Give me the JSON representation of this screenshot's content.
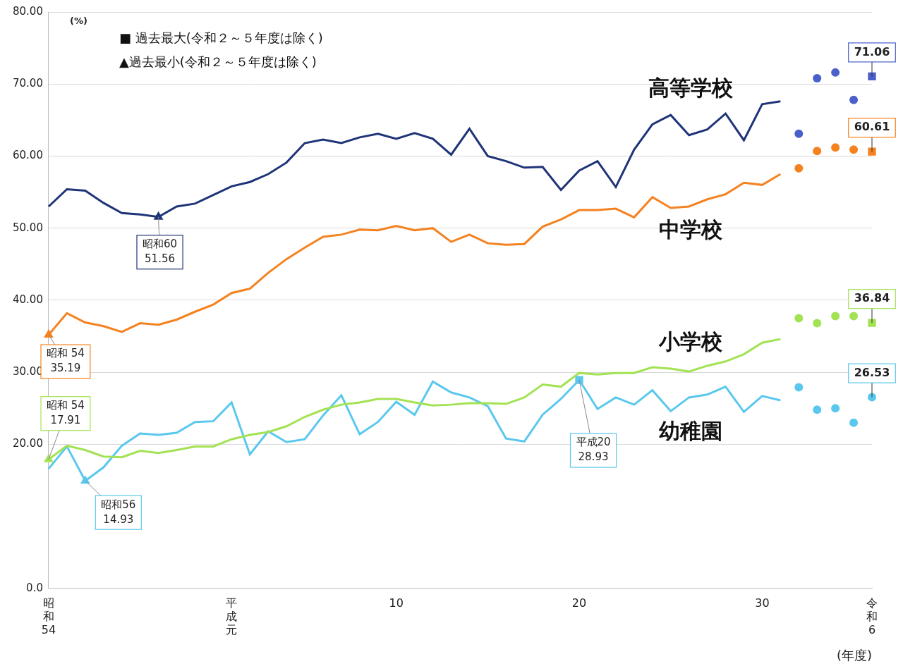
{
  "chart_data": {
    "type": "line",
    "x_label": "(年度)",
    "y_label": "(%)",
    "annotations": [
      "■ 過去最大(令和２～５年度は除く)",
      "▲過去最小(令和２～５年度は除く)"
    ],
    "categories": [
      "昭和54",
      null,
      null,
      null,
      null,
      null,
      null,
      null,
      null,
      null,
      "平成元",
      null,
      null,
      null,
      null,
      null,
      null,
      null,
      null,
      "10",
      null,
      null,
      null,
      null,
      null,
      null,
      null,
      null,
      null,
      "20",
      null,
      null,
      null,
      null,
      null,
      null,
      null,
      null,
      null,
      "30",
      null,
      null,
      null,
      null,
      null,
      "令和6"
    ],
    "ylim": [
      0,
      80
    ],
    "yticks": [
      {
        "value": 0,
        "label": "0.0"
      },
      {
        "value": 20,
        "label": "20.00"
      },
      {
        "value": 30,
        "label": "30.00"
      },
      {
        "value": 40,
        "label": "40.00"
      },
      {
        "value": 50,
        "label": "50.00"
      },
      {
        "value": 60,
        "label": "60.00"
      },
      {
        "value": 70,
        "label": "70.00"
      },
      {
        "value": 80,
        "label": "80.00"
      }
    ],
    "grid": true,
    "series": [
      {
        "name": "高等学校",
        "type": "line",
        "color": "#1f3478",
        "values": [
          53.0,
          55.4,
          55.2,
          53.5,
          52.1,
          51.9,
          51.56,
          53.0,
          53.4,
          54.6,
          55.8,
          56.4,
          57.5,
          59.1,
          61.8,
          62.3,
          61.8,
          62.6,
          63.1,
          62.4,
          63.2,
          62.4,
          60.2,
          63.8,
          60.0,
          59.3,
          58.4,
          58.5,
          55.3,
          58.0,
          59.3,
          55.7,
          60.9,
          64.4,
          65.7,
          62.9,
          63.7,
          65.9,
          62.2,
          67.2,
          67.6,
          null,
          null,
          null,
          null,
          null
        ],
        "callouts": [
          {
            "category": "昭和60",
            "value": 51.56,
            "label": "51.56",
            "marker": "triangle"
          }
        ]
      },
      {
        "name": "高等学校",
        "type": "scatter",
        "marker": "circle",
        "color": "#4a5fc9",
        "values": [
          null,
          null,
          null,
          null,
          null,
          null,
          null,
          null,
          null,
          null,
          null,
          null,
          null,
          null,
          null,
          null,
          null,
          null,
          null,
          null,
          null,
          null,
          null,
          null,
          null,
          null,
          null,
          null,
          null,
          null,
          null,
          null,
          null,
          null,
          null,
          null,
          null,
          null,
          null,
          null,
          null,
          63.1,
          70.8,
          71.6,
          67.8,
          71.06
        ],
        "callouts": [
          {
            "value": 71.06,
            "label": "71.06",
            "marker": "square"
          }
        ]
      },
      {
        "name": "中学校",
        "type": "line",
        "color": "#f58220",
        "values": [
          35.19,
          38.2,
          36.9,
          36.4,
          35.6,
          36.8,
          36.6,
          37.3,
          38.4,
          39.4,
          41.0,
          41.6,
          43.8,
          45.7,
          47.3,
          48.8,
          49.1,
          49.8,
          49.7,
          50.3,
          49.7,
          50.0,
          48.1,
          49.1,
          47.9,
          47.7,
          47.8,
          50.2,
          51.2,
          52.5,
          52.5,
          52.7,
          51.5,
          54.3,
          52.8,
          53.0,
          54.0,
          54.7,
          56.3,
          56.0,
          57.5,
          null,
          null,
          null,
          null,
          null
        ],
        "callouts": [
          {
            "category": "昭和 54",
            "value": 35.19,
            "label": "35.19",
            "marker": "triangle"
          }
        ]
      },
      {
        "name": "中学校",
        "type": "scatter",
        "marker": "circle",
        "color": "#f58220",
        "values": [
          null,
          null,
          null,
          null,
          null,
          null,
          null,
          null,
          null,
          null,
          null,
          null,
          null,
          null,
          null,
          null,
          null,
          null,
          null,
          null,
          null,
          null,
          null,
          null,
          null,
          null,
          null,
          null,
          null,
          null,
          null,
          null,
          null,
          null,
          null,
          null,
          null,
          null,
          null,
          null,
          null,
          58.3,
          60.7,
          61.2,
          60.9,
          60.61
        ],
        "callouts": [
          {
            "value": 60.61,
            "label": "60.61",
            "marker": "square"
          }
        ]
      },
      {
        "name": "小学校",
        "type": "line",
        "color": "#a3e253",
        "values": [
          17.91,
          19.8,
          19.2,
          18.3,
          18.2,
          19.1,
          18.8,
          19.2,
          19.7,
          19.7,
          20.7,
          21.3,
          21.7,
          22.5,
          23.8,
          24.8,
          25.5,
          25.8,
          26.3,
          26.3,
          25.8,
          25.4,
          25.5,
          25.7,
          25.7,
          25.6,
          26.5,
          28.3,
          28.0,
          29.9,
          29.7,
          29.9,
          29.9,
          30.7,
          30.5,
          30.1,
          30.9,
          31.5,
          32.5,
          34.1,
          34.6,
          null,
          null,
          null,
          null,
          null
        ],
        "callouts": [
          {
            "category": "昭和 54",
            "value": 17.91,
            "label": "17.91",
            "marker": "triangle"
          }
        ]
      },
      {
        "name": "小学校",
        "type": "scatter",
        "marker": "circle",
        "color": "#a3e253",
        "values": [
          null,
          null,
          null,
          null,
          null,
          null,
          null,
          null,
          null,
          null,
          null,
          null,
          null,
          null,
          null,
          null,
          null,
          null,
          null,
          null,
          null,
          null,
          null,
          null,
          null,
          null,
          null,
          null,
          null,
          null,
          null,
          null,
          null,
          null,
          null,
          null,
          null,
          null,
          null,
          null,
          null,
          37.5,
          36.8,
          37.8,
          37.8,
          36.84
        ],
        "callouts": [
          {
            "value": 36.84,
            "label": "36.84",
            "marker": "square"
          }
        ]
      },
      {
        "name": "幼稚園",
        "type": "line",
        "color": "#5ac8ee",
        "values": [
          16.6,
          19.7,
          14.93,
          16.8,
          19.8,
          21.5,
          21.3,
          21.6,
          23.1,
          23.2,
          25.8,
          18.6,
          21.8,
          20.3,
          20.7,
          24.0,
          26.8,
          21.4,
          23.1,
          25.9,
          24.1,
          28.7,
          27.2,
          26.5,
          25.3,
          20.8,
          20.4,
          24.1,
          26.3,
          28.93,
          24.9,
          26.5,
          25.5,
          27.5,
          24.6,
          26.5,
          26.9,
          28.0,
          24.5,
          26.7,
          26.1,
          null,
          null,
          null,
          null,
          null
        ],
        "callouts": [
          {
            "category": "昭和56",
            "value": 14.93,
            "label": "14.93",
            "marker": "triangle"
          },
          {
            "category": "平成20",
            "value": 28.93,
            "label": "28.93",
            "marker": "square"
          }
        ]
      },
      {
        "name": "幼稚園",
        "type": "scatter",
        "marker": "circle",
        "color": "#5ac8ee",
        "values": [
          null,
          null,
          null,
          null,
          null,
          null,
          null,
          null,
          null,
          null,
          null,
          null,
          null,
          null,
          null,
          null,
          null,
          null,
          null,
          null,
          null,
          null,
          null,
          null,
          null,
          null,
          null,
          null,
          null,
          null,
          null,
          null,
          null,
          null,
          null,
          null,
          null,
          null,
          null,
          null,
          null,
          27.9,
          24.8,
          25.0,
          23.0,
          26.53
        ],
        "callouts": [
          {
            "value": 26.53,
            "label": "26.53"
          }
        ]
      }
    ]
  }
}
